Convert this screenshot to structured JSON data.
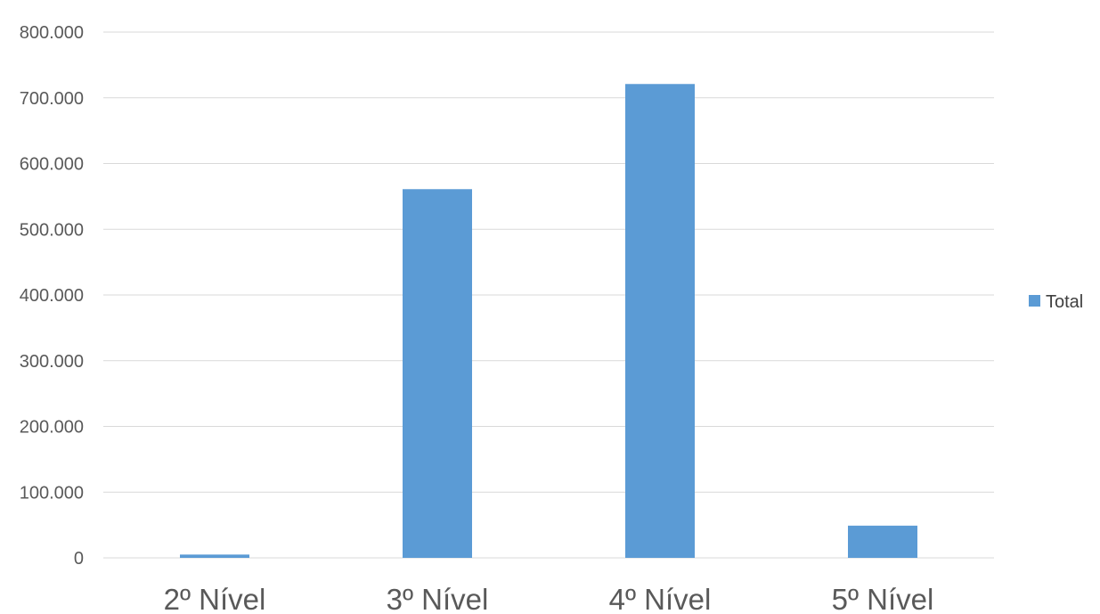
{
  "chart_data": {
    "type": "bar",
    "title": "",
    "xlabel": "",
    "ylabel": "",
    "categories": [
      "2º Nível",
      "3º Nível",
      "4º Nível",
      "5º Nível"
    ],
    "series": [
      {
        "name": "Total",
        "values": [
          5000,
          561000,
          721000,
          49000
        ],
        "color": "#5b9bd5"
      }
    ],
    "ylim": [
      0,
      800000
    ],
    "yticks": [
      0,
      100000,
      200000,
      300000,
      400000,
      500000,
      600000,
      700000,
      800000
    ],
    "ytick_labels": [
      "0",
      "100.000",
      "200.000",
      "300.000",
      "400.000",
      "500.000",
      "600.000",
      "700.000",
      "800.000"
    ],
    "grid": true,
    "legend_position": "right",
    "colors": {
      "bar": "#5b9bd5",
      "grid": "#d9d9d9",
      "text": "#595959"
    }
  }
}
